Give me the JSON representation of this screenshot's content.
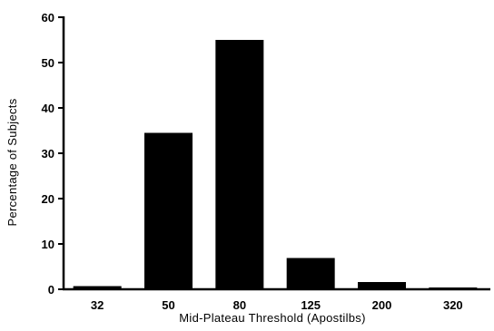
{
  "chart_data": {
    "type": "bar",
    "title": "",
    "xlabel": "Mid-Plateau Threshold (Apostilbs)",
    "ylabel": "Percentage of Subjects",
    "categories": [
      "32",
      "50",
      "80",
      "125",
      "200",
      "320"
    ],
    "values": [
      0.7,
      34.5,
      55.0,
      6.9,
      1.6,
      0.4
    ],
    "ylim": [
      0,
      60
    ],
    "yticks": [
      "0",
      "10",
      "20",
      "30",
      "40",
      "50",
      "60"
    ],
    "grid": false,
    "legend": "none",
    "bar_color": "#000000"
  }
}
